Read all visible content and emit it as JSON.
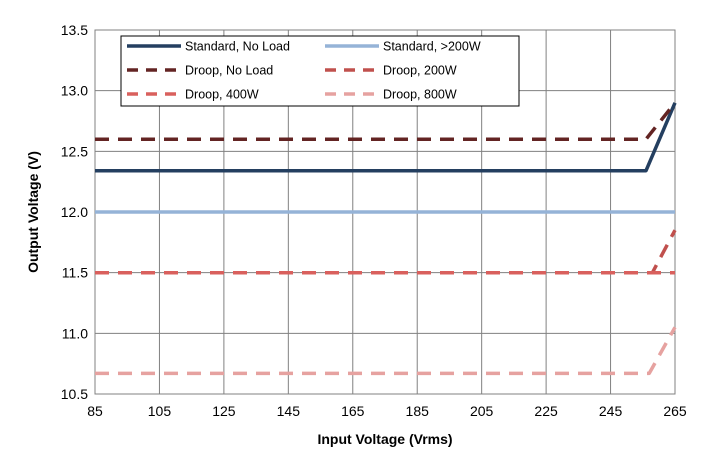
{
  "chart_data": {
    "type": "line",
    "title": "",
    "xlabel": "Input Voltage (Vrms)",
    "ylabel": "Output Voltage (V)",
    "xlim": [
      85,
      265
    ],
    "ylim": [
      10.5,
      13.5
    ],
    "xticks": [
      85,
      105,
      125,
      145,
      165,
      185,
      205,
      225,
      245,
      265
    ],
    "yticks": [
      10.5,
      11.0,
      11.5,
      12.0,
      12.5,
      13.0,
      13.5
    ],
    "xtick_labels": [
      "85",
      "105",
      "125",
      "145",
      "165",
      "185",
      "205",
      "225",
      "245",
      "265"
    ],
    "ytick_labels": [
      "10.5",
      "11.0",
      "11.5",
      "12.0",
      "12.5",
      "13.0",
      "13.5"
    ],
    "grid": true,
    "legend_position": "top",
    "series": [
      {
        "name": "Standard, No Load",
        "color": "#243f60",
        "style": "solid",
        "x": [
          85,
          256,
          265
        ],
        "y": [
          12.34,
          12.34,
          12.9
        ]
      },
      {
        "name": "Standard, >200W",
        "color": "#95b3d7",
        "style": "solid",
        "x": [
          85,
          265
        ],
        "y": [
          12.0,
          12.0
        ]
      },
      {
        "name": "Droop, No Load",
        "color": "#632423",
        "style": "dashed",
        "x": [
          85,
          256,
          265
        ],
        "y": [
          12.6,
          12.6,
          12.9
        ]
      },
      {
        "name": "Droop, 200W",
        "color": "#c0504d",
        "style": "dashed",
        "x": [
          85,
          258,
          265
        ],
        "y": [
          11.5,
          11.5,
          11.85
        ]
      },
      {
        "name": "Droop, 400W",
        "color": "#d9605d",
        "style": "dashed",
        "x": [
          85,
          256,
          265
        ],
        "y": [
          11.5,
          11.5,
          11.5
        ]
      },
      {
        "name": "Droop, 800W",
        "color": "#e6a2a0",
        "style": "dashed",
        "x": [
          85,
          257,
          265
        ],
        "y": [
          10.67,
          10.67,
          11.05
        ]
      }
    ]
  }
}
